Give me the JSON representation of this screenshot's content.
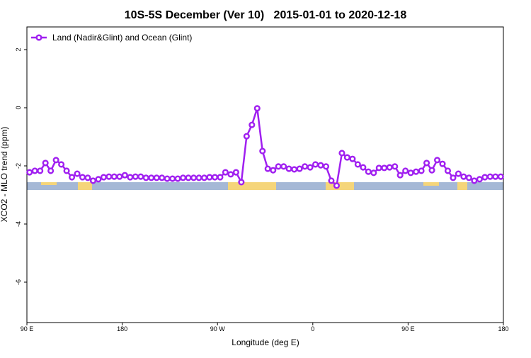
{
  "chart_data": {
    "type": "line",
    "title": "10S-5S December (Ver 10)   2015-01-01 to 2020-12-18",
    "xlabel": "Longitude (deg E)",
    "ylabel": "XCO2 - MLO trend (ppm)",
    "x": [
      92.5,
      97.5,
      102.5,
      107.5,
      112.5,
      117.5,
      122.5,
      127.5,
      132.5,
      137.5,
      142.5,
      147.5,
      152.5,
      157.5,
      162.5,
      167.5,
      172.5,
      177.5,
      182.5,
      187.5,
      192.5,
      197.5,
      202.5,
      207.5,
      212.5,
      217.5,
      222.5,
      227.5,
      232.5,
      237.5,
      242.5,
      247.5,
      252.5,
      257.5,
      262.5,
      267.5,
      272.5,
      277.5,
      282.5,
      287.5,
      292.5,
      297.5,
      302.5,
      307.5,
      312.5,
      317.5,
      322.5,
      327.5,
      332.5,
      337.5,
      342.5,
      347.5,
      352.5,
      357.5,
      362.5,
      367.5,
      372.5,
      377.5,
      382.5,
      387.5,
      392.5,
      397.5,
      402.5,
      407.5,
      412.5,
      417.5,
      422.5,
      427.5,
      432.5,
      437.5,
      442.5,
      447.5,
      452.5,
      457.5,
      462.5,
      467.5,
      472.5,
      477.5,
      482.5,
      487.5,
      492.5,
      497.5,
      502.5,
      507.5,
      512.5,
      517.5,
      522.5,
      527.5,
      532.5,
      537.5
    ],
    "series": [
      {
        "name": "Land (Nadir&Glint) and Ocean (Glint)",
        "color": "#a020f0",
        "values": [
          -2.22,
          -2.17,
          -2.17,
          -1.9,
          -2.17,
          -1.8,
          -1.95,
          -2.17,
          -2.39,
          -2.27,
          -2.39,
          -2.41,
          -2.51,
          -2.46,
          -2.39,
          -2.37,
          -2.37,
          -2.37,
          -2.32,
          -2.39,
          -2.37,
          -2.37,
          -2.41,
          -2.41,
          -2.41,
          -2.41,
          -2.44,
          -2.44,
          -2.44,
          -2.41,
          -2.41,
          -2.41,
          -2.41,
          -2.41,
          -2.39,
          -2.39,
          -2.39,
          -2.22,
          -2.29,
          -2.22,
          -2.56,
          -0.98,
          -0.59,
          -0.02,
          -1.49,
          -2.1,
          -2.15,
          -2.02,
          -2.02,
          -2.1,
          -2.12,
          -2.1,
          -2.02,
          -2.05,
          -1.95,
          -1.98,
          -2.02,
          -2.51,
          -2.68,
          -1.56,
          -1.71,
          -1.76,
          -1.95,
          -2.05,
          -2.2,
          -2.24,
          -2.07,
          -2.07,
          -2.05,
          -2.02,
          -2.32,
          -2.17,
          -2.24,
          -2.2,
          -2.17,
          -1.9,
          -2.15,
          -1.8,
          -1.93,
          -2.17,
          -2.41,
          -2.27,
          -2.37,
          -2.41,
          -2.51,
          -2.46,
          -2.39,
          -2.37,
          -2.37,
          -2.37
        ]
      }
    ],
    "xlim": [
      90,
      540
    ],
    "xticks": [
      {
        "value": 90,
        "label": "90 E"
      },
      {
        "value": 180,
        "label": "180"
      },
      {
        "value": 270,
        "label": "90 W"
      },
      {
        "value": 360,
        "label": "0"
      },
      {
        "value": 450,
        "label": "90 E"
      },
      {
        "value": 540,
        "label": "180"
      }
    ],
    "ylim": [
      -7.39,
      2.78
    ],
    "yticks": [
      2,
      0,
      -2,
      -4,
      -6
    ],
    "legend": "top-left"
  }
}
